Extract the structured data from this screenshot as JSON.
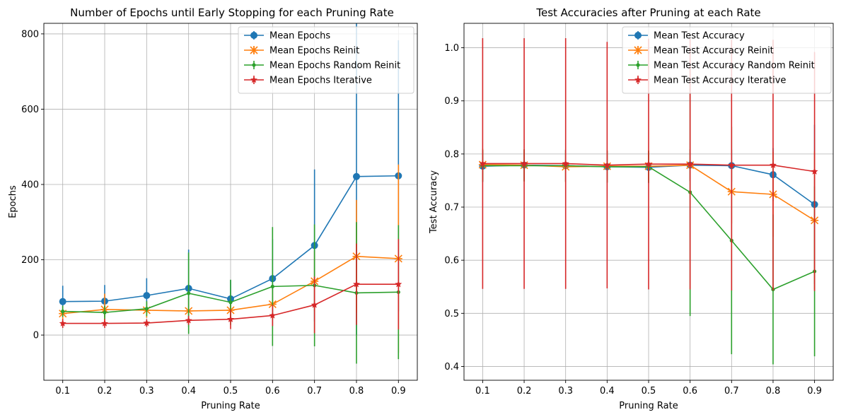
{
  "chart_data": [
    {
      "type": "line",
      "title": "Number of Epochs until Early Stopping for each Pruning Rate",
      "xlabel": "Pruning Rate",
      "ylabel": "Epochs",
      "x": [
        0.1,
        0.2,
        0.3,
        0.4,
        0.5,
        0.6,
        0.7,
        0.8,
        0.9
      ],
      "xlim": [
        0.055,
        0.945
      ],
      "ylim": [
        -120,
        828
      ],
      "xticks": [
        "0.1",
        "0.2",
        "0.3",
        "0.4",
        "0.5",
        "0.6",
        "0.7",
        "0.8",
        "0.9"
      ],
      "yticks": [
        0,
        200,
        400,
        600,
        800
      ],
      "ytick_labels": [
        "0",
        "200",
        "400",
        "600",
        "800"
      ],
      "grid": true,
      "legend_position": "top-right",
      "series": [
        {
          "name": "Mean Epochs",
          "color": "#1f77b4",
          "marker": "circle",
          "values": [
            89,
            90,
            105,
            124,
            96,
            150,
            238,
            421,
            423
          ],
          "error": [
            42,
            43,
            46,
            103,
            50,
            105,
            202,
            420,
            360
          ]
        },
        {
          "name": "Mean Epochs Reinit",
          "color": "#ff7f0e",
          "marker": "x",
          "values": [
            57,
            68,
            66,
            64,
            66,
            82,
            143,
            209,
            203
          ],
          "error": [
            20,
            42,
            20,
            35,
            20,
            40,
            80,
            150,
            250
          ]
        },
        {
          "name": "Mean Epochs Random Reinit",
          "color": "#2ca02c",
          "marker": "point",
          "values": [
            63,
            60,
            70,
            111,
            87,
            129,
            132,
            112,
            114
          ],
          "error": [
            15,
            18,
            20,
            108,
            60,
            158,
            162,
            188,
            178
          ]
        },
        {
          "name": "Mean Epochs Iterative",
          "color": "#d62728",
          "marker": "star",
          "values": [
            31,
            31,
            32,
            39,
            42,
            52,
            80,
            135,
            135
          ],
          "error": [
            12,
            12,
            10,
            12,
            26,
            28,
            75,
            108,
            120
          ]
        }
      ]
    },
    {
      "type": "line",
      "title": "Test Accuracies after Pruning at each Rate",
      "xlabel": "Pruning Rate",
      "ylabel": "Test Accuracy",
      "x": [
        0.1,
        0.2,
        0.3,
        0.4,
        0.5,
        0.6,
        0.7,
        0.8,
        0.9
      ],
      "xlim": [
        0.055,
        0.945
      ],
      "ylim": [
        0.374,
        1.046
      ],
      "xticks": [
        "0.1",
        "0.2",
        "0.3",
        "0.4",
        "0.5",
        "0.6",
        "0.7",
        "0.8",
        "0.9"
      ],
      "yticks": [
        0.4,
        0.5,
        0.6,
        0.7,
        0.8,
        0.9,
        1.0
      ],
      "ytick_labels": [
        "0.4",
        "0.5",
        "0.6",
        "0.7",
        "0.8",
        "0.9",
        "1.0"
      ],
      "grid": true,
      "legend_position": "top-right",
      "series": [
        {
          "name": "Mean Test Accuracy",
          "color": "#1f77b4",
          "marker": "circle",
          "values": [
            0.777,
            0.779,
            0.778,
            0.776,
            0.775,
            0.779,
            0.778,
            0.761,
            0.705
          ],
          "error": [
            0.03,
            0.03,
            0.03,
            0.03,
            0.03,
            0.03,
            0.03,
            0.05,
            0.15
          ]
        },
        {
          "name": "Mean Test Accuracy Reinit",
          "color": "#ff7f0e",
          "marker": "x",
          "values": [
            0.78,
            0.779,
            0.776,
            0.777,
            0.777,
            0.779,
            0.729,
            0.724,
            0.675
          ],
          "error": [
            0.03,
            0.03,
            0.03,
            0.03,
            0.03,
            0.03,
            0.06,
            0.08,
            0.13
          ]
        },
        {
          "name": "Mean Test Accuracy Random Reinit",
          "color": "#2ca02c",
          "marker": "point",
          "values": [
            0.778,
            0.778,
            0.778,
            0.776,
            0.776,
            0.728,
            0.637,
            0.545,
            0.579
          ],
          "error": [
            0.03,
            0.03,
            0.03,
            0.03,
            0.03,
            0.233,
            0.214,
            0.141,
            0.16
          ]
        },
        {
          "name": "Mean Test Accuracy Iterative",
          "color": "#d62728",
          "marker": "star",
          "values": [
            0.782,
            0.782,
            0.782,
            0.779,
            0.781,
            0.781,
            0.779,
            0.779,
            0.767
          ],
          "error": [
            0.236,
            0.236,
            0.236,
            0.232,
            0.236,
            0.236,
            0.236,
            0.236,
            0.225
          ]
        }
      ]
    }
  ]
}
